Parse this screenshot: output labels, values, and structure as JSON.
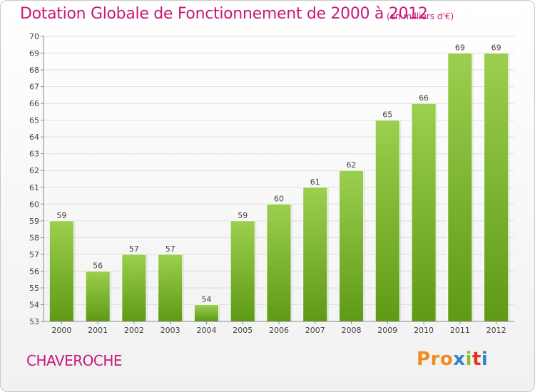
{
  "title": "Dotation Globale de Fonctionnement de 2000 à 2012",
  "subtitle": "(en milliers d'€)",
  "commune": "CHAVEROCHE",
  "logo": {
    "parts": [
      "Pro",
      "x",
      "i",
      "t",
      "i"
    ],
    "colors": [
      "#ef8a1e",
      "#2e86c8",
      "#8bbf2a",
      "#e2341f",
      "#2e86c8"
    ]
  },
  "chart_data": {
    "type": "bar",
    "title": "Dotation Globale de Fonctionnement de 2000 à 2012",
    "subtitle": "(en milliers d'€)",
    "xlabel": "",
    "ylabel": "",
    "categories": [
      "2000",
      "2001",
      "2002",
      "2003",
      "2004",
      "2005",
      "2006",
      "2007",
      "2008",
      "2009",
      "2010",
      "2011",
      "2012"
    ],
    "values": [
      59,
      56,
      57,
      57,
      54,
      59,
      60,
      61,
      62,
      65,
      66,
      69,
      69
    ],
    "ylim": [
      53,
      70
    ],
    "yticks": [
      53,
      54,
      55,
      56,
      57,
      58,
      59,
      60,
      61,
      62,
      63,
      64,
      65,
      66,
      67,
      68,
      69,
      70
    ],
    "grid": true,
    "legend": "none",
    "colors": {
      "bar_top": "#9ccf4f",
      "bar_bottom": "#5e9a16",
      "grid": "#dddddd",
      "axis": "#888888",
      "text": "#444444"
    }
  }
}
